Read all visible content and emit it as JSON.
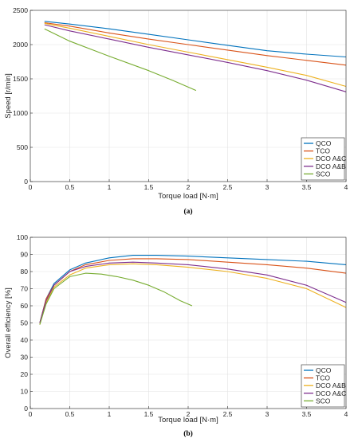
{
  "chart_data": [
    {
      "type": "line",
      "caption": "(a)",
      "xlabel": "Torque load  [N·m]",
      "ylabel": "Speed [r/min]",
      "xlim": [
        0,
        4
      ],
      "ylim": [
        0,
        2500
      ],
      "xticks": [
        0,
        0.5,
        1,
        1.5,
        2,
        2.5,
        3,
        3.5,
        4
      ],
      "yticks": [
        0,
        500,
        1000,
        1500,
        2000,
        2500
      ],
      "grid": true,
      "legend_position": "bottom-right",
      "series": [
        {
          "name": "QCO",
          "color": "#0072BD",
          "x": [
            0.18,
            0.5,
            1.0,
            1.5,
            2.0,
            2.5,
            3.0,
            3.5,
            4.0
          ],
          "y": [
            2340,
            2300,
            2230,
            2150,
            2070,
            1990,
            1910,
            1860,
            1820
          ]
        },
        {
          "name": "TCO",
          "color": "#D95319",
          "x": [
            0.18,
            0.5,
            1.0,
            1.5,
            2.0,
            2.5,
            3.0,
            3.5,
            4.0
          ],
          "y": [
            2320,
            2270,
            2170,
            2080,
            2000,
            1920,
            1840,
            1770,
            1700
          ]
        },
        {
          "name": "DCO A&C",
          "color": "#EDB120",
          "x": [
            0.18,
            0.5,
            1.0,
            1.5,
            2.0,
            2.5,
            3.0,
            3.5,
            4.0
          ],
          "y": [
            2310,
            2240,
            2120,
            2000,
            1890,
            1780,
            1670,
            1550,
            1390
          ]
        },
        {
          "name": "DCO A&B",
          "color": "#7E2F8E",
          "x": [
            0.18,
            0.5,
            1.0,
            1.5,
            2.0,
            2.5,
            3.0,
            3.5,
            4.0
          ],
          "y": [
            2290,
            2200,
            2080,
            1960,
            1850,
            1740,
            1620,
            1480,
            1310
          ]
        },
        {
          "name": "SCO",
          "color": "#77AC30",
          "x": [
            0.18,
            0.5,
            1.0,
            1.5,
            1.8,
            2.1
          ],
          "y": [
            2230,
            2050,
            1830,
            1620,
            1480,
            1330
          ]
        }
      ]
    },
    {
      "type": "line",
      "caption": "(b)",
      "xlabel": "Torque load  [N·m]",
      "ylabel": "Overall efficiency [%]",
      "xlim": [
        0,
        4
      ],
      "ylim": [
        0,
        100
      ],
      "xticks": [
        0,
        0.5,
        1,
        1.5,
        2,
        2.5,
        3,
        3.5,
        4
      ],
      "yticks": [
        0,
        10,
        20,
        30,
        40,
        50,
        60,
        70,
        80,
        90,
        100
      ],
      "grid": true,
      "legend_position": "bottom-right",
      "series": [
        {
          "name": "QCO",
          "color": "#0072BD",
          "x": [
            0.12,
            0.2,
            0.3,
            0.5,
            0.7,
            1.0,
            1.3,
            1.6,
            2.0,
            2.5,
            3.0,
            3.5,
            4.0
          ],
          "y": [
            50,
            64,
            73,
            81,
            85,
            88,
            89.5,
            89.5,
            89,
            88,
            87,
            86,
            84
          ]
        },
        {
          "name": "TCO",
          "color": "#D95319",
          "x": [
            0.12,
            0.2,
            0.3,
            0.5,
            0.7,
            1.0,
            1.3,
            1.6,
            2.0,
            2.5,
            3.0,
            3.5,
            4.0
          ],
          "y": [
            50,
            64,
            72,
            80,
            84,
            86.5,
            87.5,
            87.5,
            87,
            85.5,
            84,
            82,
            79
          ]
        },
        {
          "name": "DCO A&B",
          "color": "#EDB120",
          "x": [
            0.12,
            0.2,
            0.3,
            0.5,
            0.7,
            1.0,
            1.3,
            1.6,
            2.0,
            2.5,
            3.0,
            3.5,
            4.0
          ],
          "y": [
            49,
            62,
            71,
            78,
            82,
            84,
            84.5,
            84,
            82.5,
            80,
            76,
            70,
            59
          ]
        },
        {
          "name": "DCO A&C",
          "color": "#7E2F8E",
          "x": [
            0.12,
            0.2,
            0.3,
            0.5,
            0.7,
            1.0,
            1.3,
            1.6,
            2.0,
            2.5,
            3.0,
            3.5,
            4.0
          ],
          "y": [
            50,
            63,
            72,
            80,
            83,
            85,
            85.5,
            85,
            84,
            81.5,
            78,
            72,
            62
          ]
        },
        {
          "name": "SCO",
          "color": "#77AC30",
          "x": [
            0.12,
            0.2,
            0.3,
            0.5,
            0.7,
            0.9,
            1.1,
            1.3,
            1.5,
            1.7,
            1.9,
            2.05
          ],
          "y": [
            49,
            61,
            70,
            77,
            79,
            78.5,
            77,
            75,
            72,
            68,
            63,
            60
          ]
        }
      ]
    }
  ]
}
